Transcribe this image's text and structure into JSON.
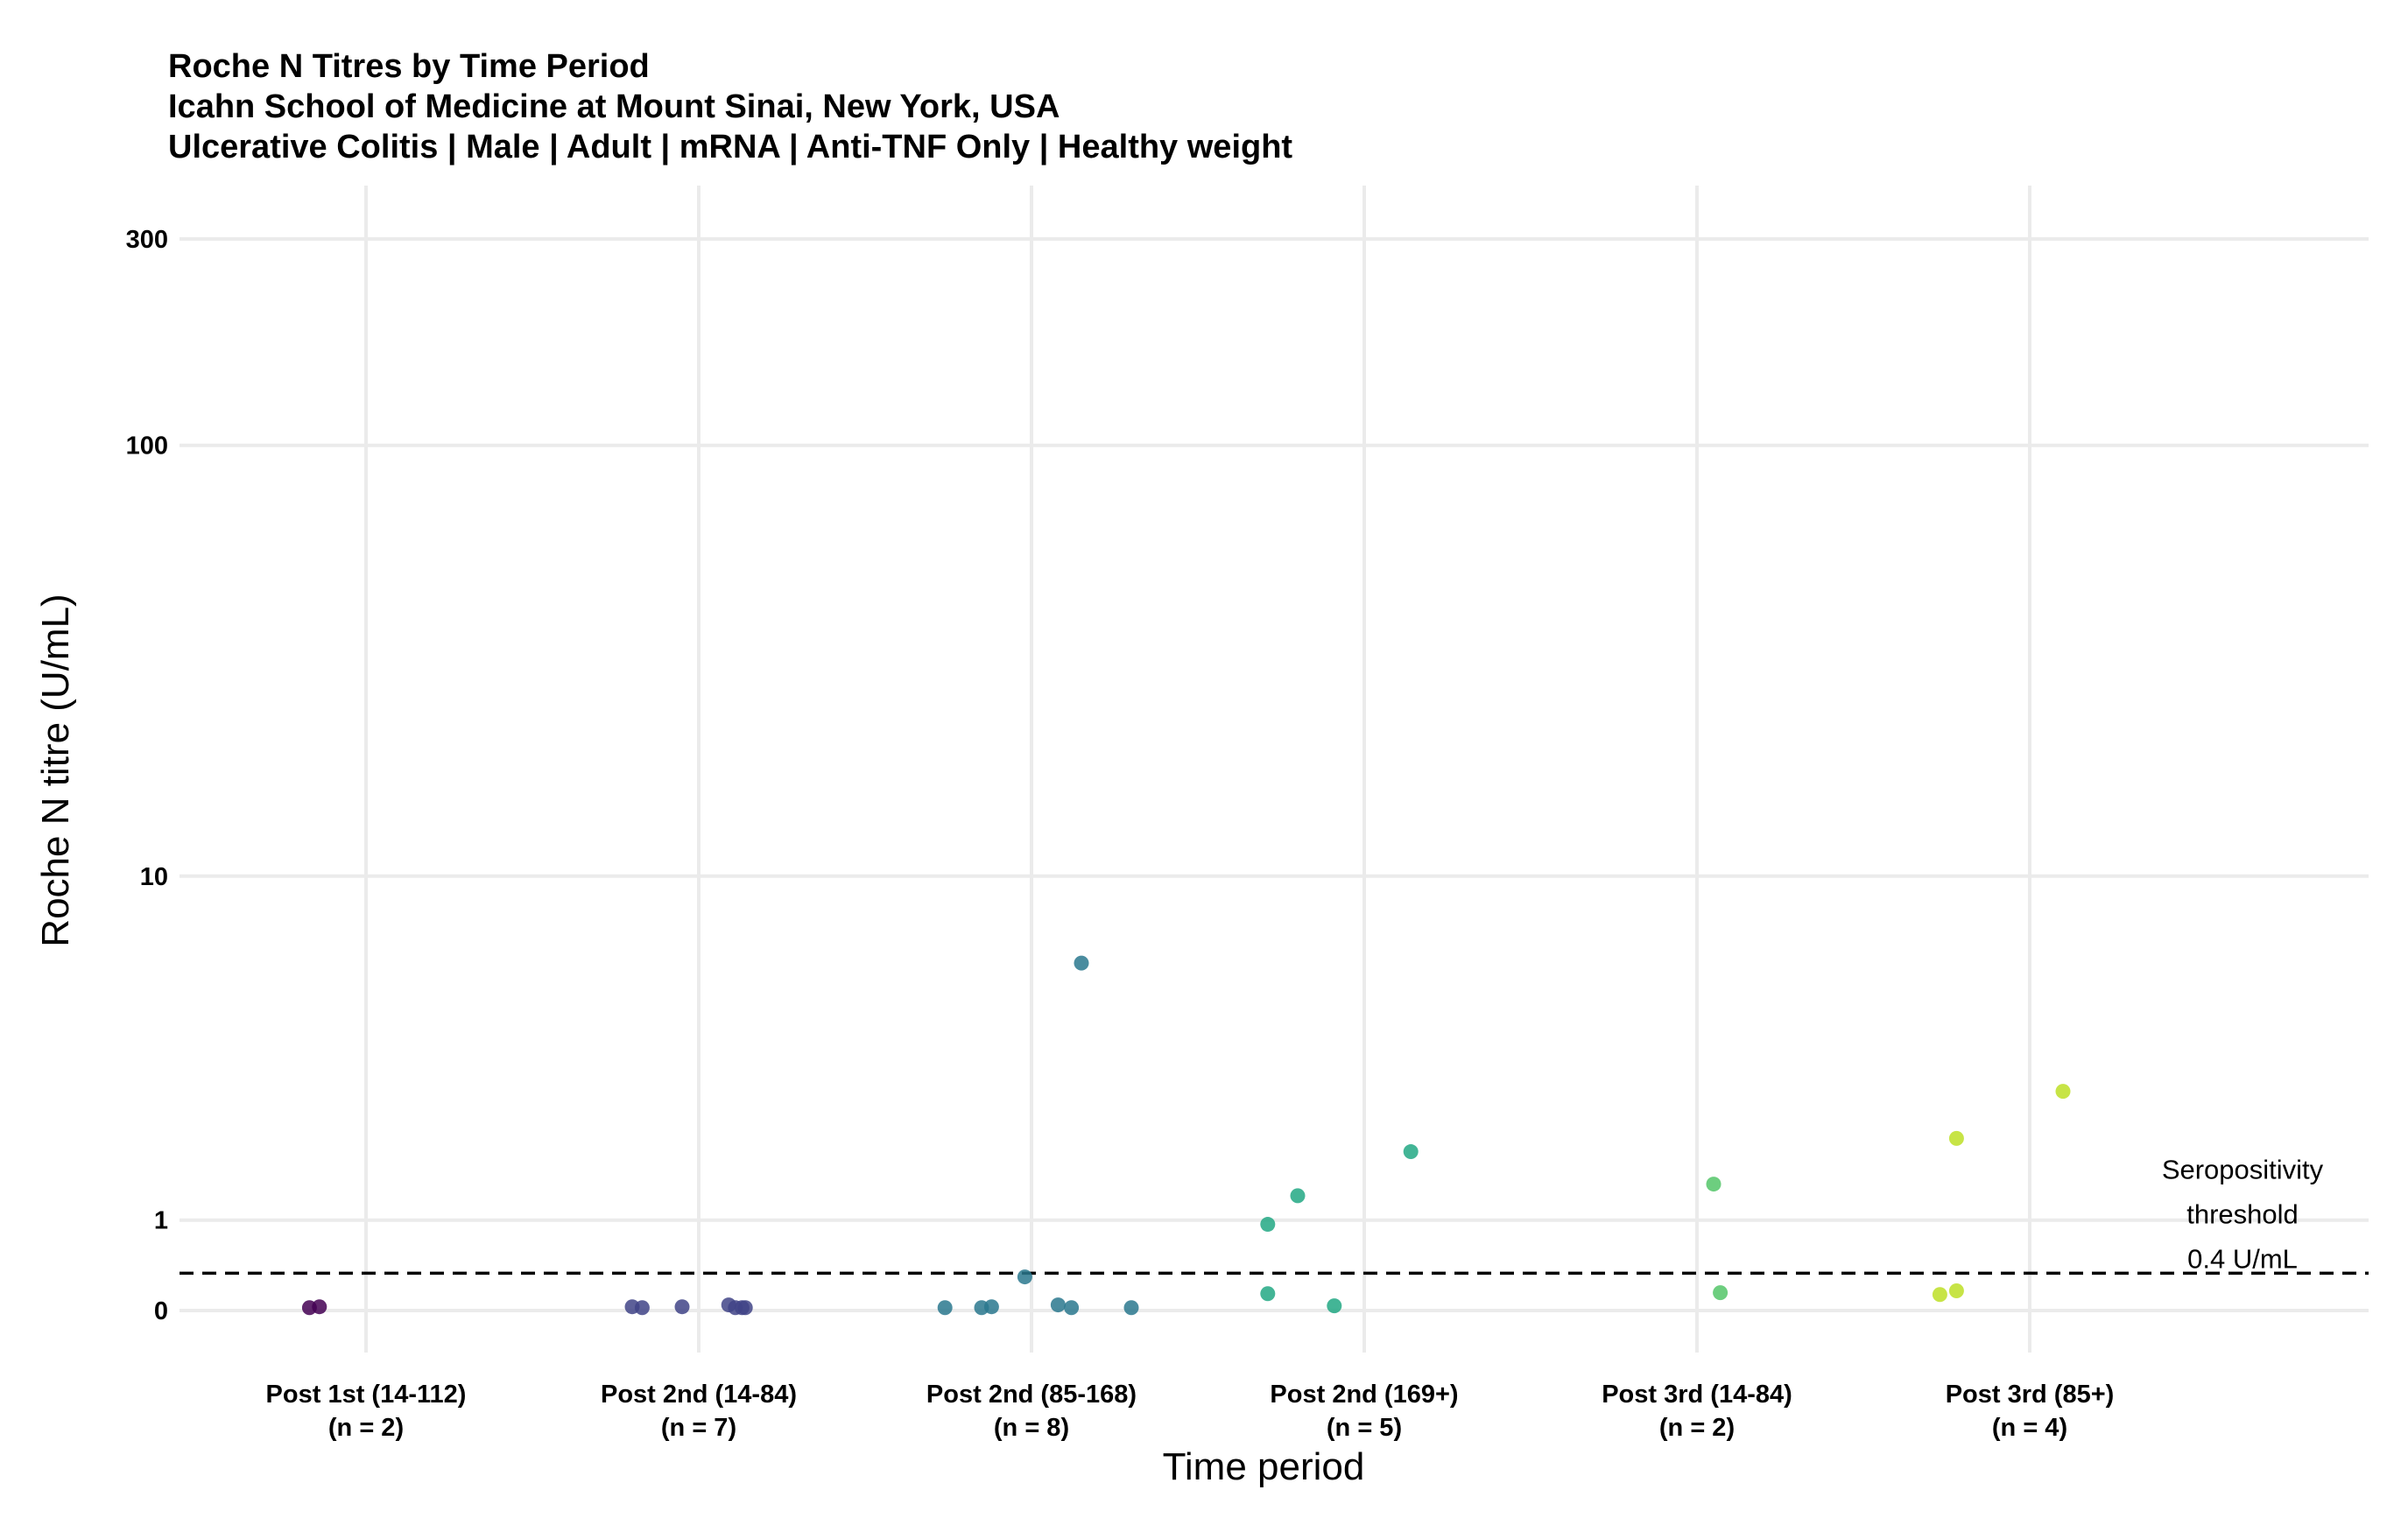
{
  "chart_data": {
    "type": "scatter",
    "title_lines": [
      "Roche N Titres by Time Period",
      "Icahn School of Medicine at Mount Sinai, New York, USA",
      "Ulcerative Colitis | Male | Adult | mRNA | Anti-TNF Only | Healthy weight"
    ],
    "xlabel": "Time period",
    "ylabel": "Roche N titre (U/mL)",
    "y_scale": "pseudo-log",
    "y_ticks": [
      {
        "value": 0,
        "label": "0"
      },
      {
        "value": 1,
        "label": "1"
      },
      {
        "value": 10,
        "label": "10"
      },
      {
        "value": 100,
        "label": "100"
      },
      {
        "value": 300,
        "label": "300"
      }
    ],
    "categories": [
      {
        "label": "Post 1st (14-112)",
        "n_label": "(n = 2)"
      },
      {
        "label": "Post 2nd (14-84)",
        "n_label": "(n = 7)"
      },
      {
        "label": "Post 2nd (85-168)",
        "n_label": "(n = 8)"
      },
      {
        "label": "Post 2nd (169+)",
        "n_label": "(n = 5)"
      },
      {
        "label": "Post 3rd (14-84)",
        "n_label": "(n = 2)"
      },
      {
        "label": "Post 3rd (85+)",
        "n_label": "(n = 4)"
      }
    ],
    "points": [
      {
        "category": 0,
        "jitter": -0.17,
        "value": 0.03
      },
      {
        "category": 0,
        "jitter": -0.14,
        "value": 0.04
      },
      {
        "category": 1,
        "jitter": -0.2,
        "value": 0.04
      },
      {
        "category": 1,
        "jitter": -0.17,
        "value": 0.03
      },
      {
        "category": 1,
        "jitter": -0.05,
        "value": 0.04
      },
      {
        "category": 1,
        "jitter": 0.09,
        "value": 0.06
      },
      {
        "category": 1,
        "jitter": 0.11,
        "value": 0.03
      },
      {
        "category": 1,
        "jitter": 0.13,
        "value": 0.03
      },
      {
        "category": 1,
        "jitter": 0.14,
        "value": 0.03
      },
      {
        "category": 2,
        "jitter": -0.26,
        "value": 0.03
      },
      {
        "category": 2,
        "jitter": -0.15,
        "value": 0.03
      },
      {
        "category": 2,
        "jitter": -0.12,
        "value": 0.04
      },
      {
        "category": 2,
        "jitter": -0.02,
        "value": 0.36
      },
      {
        "category": 2,
        "jitter": 0.08,
        "value": 0.06
      },
      {
        "category": 2,
        "jitter": 0.12,
        "value": 0.03
      },
      {
        "category": 2,
        "jitter": 0.15,
        "value": 6.2
      },
      {
        "category": 2,
        "jitter": 0.3,
        "value": 0.03
      },
      {
        "category": 3,
        "jitter": -0.29,
        "value": 0.18
      },
      {
        "category": 3,
        "jitter": -0.29,
        "value": 0.95
      },
      {
        "category": 3,
        "jitter": -0.2,
        "value": 1.3
      },
      {
        "category": 3,
        "jitter": -0.09,
        "value": 0.05
      },
      {
        "category": 3,
        "jitter": 0.14,
        "value": 1.9
      },
      {
        "category": 4,
        "jitter": 0.05,
        "value": 1.45
      },
      {
        "category": 4,
        "jitter": 0.07,
        "value": 0.19
      },
      {
        "category": 5,
        "jitter": -0.27,
        "value": 0.17
      },
      {
        "category": 5,
        "jitter": -0.22,
        "value": 2.1
      },
      {
        "category": 5,
        "jitter": -0.22,
        "value": 0.21
      },
      {
        "category": 5,
        "jitter": 0.1,
        "value": 2.9
      }
    ],
    "category_colors": [
      "#440154",
      "#414487",
      "#2a788e",
      "#22a884",
      "#54c568",
      "#bddf26"
    ],
    "point_opacity": 0.85,
    "threshold": {
      "value": 0.4,
      "label_lines": [
        "Seropositivity",
        "threshold",
        "0.4 U/mL"
      ]
    },
    "grid": true,
    "legend": "none"
  }
}
